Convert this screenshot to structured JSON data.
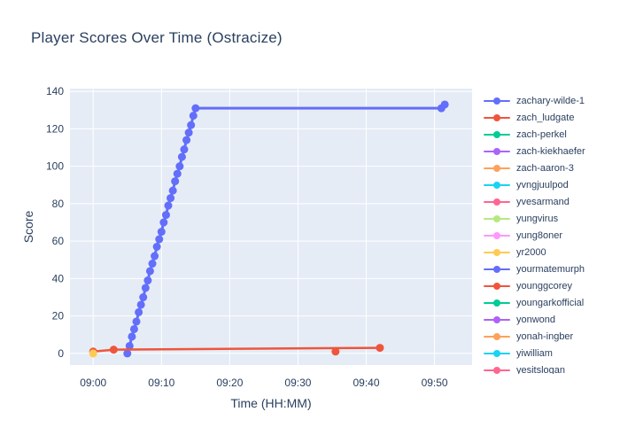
{
  "title": "Player Scores Over Time (Ostracize)",
  "colors": {
    "background": "#ffffff",
    "plot_background": "#E5ECF6",
    "gridline": "#ffffff",
    "text": "#2a3f5f"
  },
  "chart_data": {
    "type": "line",
    "title": "Player Scores Over Time (Ostracize)",
    "xlabel": "Time (HH:MM)",
    "ylabel": "Score",
    "grid": true,
    "legend_position": "right",
    "x_ticks": [
      {
        "m": 0,
        "label": "09:00"
      },
      {
        "m": 10,
        "label": "09:10"
      },
      {
        "m": 20,
        "label": "09:20"
      },
      {
        "m": 30,
        "label": "09:30"
      },
      {
        "m": 40,
        "label": "09:40"
      },
      {
        "m": 50,
        "label": "09:50"
      }
    ],
    "y_ticks": [
      0,
      20,
      40,
      60,
      80,
      100,
      120,
      140
    ],
    "x_range": [
      -3.4,
      55.5
    ],
    "y_range": [
      -6.2,
      141.5
    ],
    "series": [
      {
        "name": "zachary-wilde-1",
        "color": "#636EFA",
        "mode": "lines+markers",
        "line_width": 3,
        "points": [
          [
            5.0,
            0
          ],
          [
            5.33,
            4
          ],
          [
            5.67,
            9
          ],
          [
            6.0,
            13
          ],
          [
            6.33,
            17
          ],
          [
            6.67,
            22
          ],
          [
            7.0,
            26
          ],
          [
            7.33,
            30
          ],
          [
            7.67,
            35
          ],
          [
            8.0,
            39
          ],
          [
            8.33,
            44
          ],
          [
            8.67,
            48
          ],
          [
            9.0,
            52
          ],
          [
            9.33,
            57
          ],
          [
            9.67,
            61
          ],
          [
            10.0,
            65
          ],
          [
            10.33,
            70
          ],
          [
            10.67,
            74
          ],
          [
            11.0,
            79
          ],
          [
            11.33,
            83
          ],
          [
            11.67,
            87
          ],
          [
            12.0,
            92
          ],
          [
            12.33,
            96
          ],
          [
            12.67,
            100
          ],
          [
            13.0,
            105
          ],
          [
            13.33,
            109
          ],
          [
            13.67,
            114
          ],
          [
            14.0,
            118
          ],
          [
            14.33,
            122
          ],
          [
            14.67,
            127
          ],
          [
            15.0,
            131
          ],
          [
            51.0,
            131
          ],
          [
            51.5,
            133
          ]
        ]
      },
      {
        "name": "zach_ludgate",
        "color": "#EF553B",
        "mode": "lines+markers",
        "line_width": 2.5,
        "points": [
          [
            0,
            1
          ],
          [
            3,
            2
          ],
          [
            42,
            3
          ]
        ]
      },
      {
        "name": "zach-perkel",
        "color": "#00CC96",
        "mode": "lines+markers",
        "line_width": 2.5,
        "points": []
      },
      {
        "name": "zach-kiekhaefer",
        "color": "#AB63FA",
        "mode": "lines+markers",
        "line_width": 2.5,
        "points": []
      },
      {
        "name": "zach-aaron-3",
        "color": "#FFA15A",
        "mode": "lines+markers",
        "line_width": 2.5,
        "points": []
      },
      {
        "name": "yvngjuulpod",
        "color": "#19D3F3",
        "mode": "lines+markers",
        "line_width": 2.5,
        "points": []
      },
      {
        "name": "yvesarmand",
        "color": "#FF6692",
        "mode": "lines+markers",
        "line_width": 2.5,
        "points": []
      },
      {
        "name": "yungvirus",
        "color": "#B6E880",
        "mode": "lines+markers",
        "line_width": 2.5,
        "points": []
      },
      {
        "name": "yung8oner",
        "color": "#FF97FF",
        "mode": "lines+markers",
        "line_width": 2.5,
        "points": []
      },
      {
        "name": "yr2000",
        "color": "#FECB52",
        "mode": "markers",
        "line_width": 2.5,
        "points": [
          [
            0,
            0
          ]
        ]
      },
      {
        "name": "yourmatemurph",
        "color": "#636EFA",
        "mode": "lines+markers",
        "line_width": 2.5,
        "points": []
      },
      {
        "name": "younggcorey",
        "color": "#EF553B",
        "mode": "markers",
        "line_width": 2.5,
        "points": [
          [
            35.5,
            1
          ]
        ]
      },
      {
        "name": "youngarkofficial",
        "color": "#00CC96",
        "mode": "lines+markers",
        "line_width": 2.5,
        "points": []
      },
      {
        "name": "yonwond",
        "color": "#AB63FA",
        "mode": "lines+markers",
        "line_width": 2.5,
        "points": []
      },
      {
        "name": "yonah-ingber",
        "color": "#FFA15A",
        "mode": "lines+markers",
        "line_width": 2.5,
        "points": []
      },
      {
        "name": "yiwilliam",
        "color": "#19D3F3",
        "mode": "lines+markers",
        "line_width": 2.5,
        "points": []
      },
      {
        "name": "yesitslogan",
        "color": "#FF6692",
        "mode": "lines+markers",
        "line_width": 2.5,
        "points": []
      }
    ]
  }
}
